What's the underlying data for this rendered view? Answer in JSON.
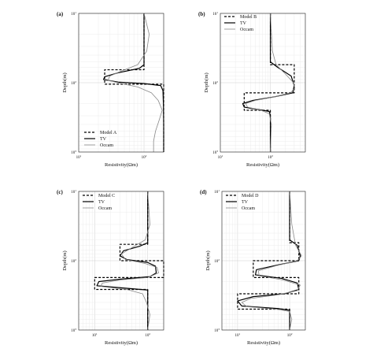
{
  "figure": {
    "panels": [
      {
        "letter": "(a)",
        "xlabel": "Resistivity(Ωm)",
        "ylabel": "Depth(m)"
      },
      {
        "letter": "(b)",
        "xlabel": "Resistivity(Ωm)",
        "ylabel": "Depth(m)"
      },
      {
        "letter": "(c)",
        "xlabel": "Resistivity(Ωm)",
        "ylabel": "Depth(m)"
      },
      {
        "letter": "(d)",
        "xlabel": "Resistivity(Ωm)",
        "ylabel": "Depth(m)"
      }
    ]
  },
  "chart_data": [
    {
      "type": "line",
      "panel": "(a)",
      "xlabel": "Resistivity(Ωm)",
      "ylabel": "Depth(m)",
      "xscale": "log",
      "yscale": "log",
      "y_inverted": true,
      "xlim": [
        10,
        200
      ],
      "ylim": [
        10,
        1000
      ],
      "xticks": [
        {
          "label": "10",
          "sup": "1"
        },
        {
          "label": "10",
          "sup": "2"
        }
      ],
      "yticks": [
        {
          "label": "10",
          "sup": "1"
        },
        {
          "label": "10",
          "sup": "2"
        },
        {
          "label": "10",
          "sup": "3"
        }
      ],
      "grid": true,
      "legend_position": "bottom-left",
      "series": [
        {
          "name": "Model A",
          "style": "dashed",
          "color": "#000000",
          "points": [
            [
              100,
              10
            ],
            [
              100,
              65
            ],
            [
              25,
              65
            ],
            [
              25,
              105
            ],
            [
              200,
              105
            ],
            [
              200,
              1000
            ]
          ]
        },
        {
          "name": "TV",
          "style": "solid",
          "color": "#000000",
          "points": [
            [
              100,
              10
            ],
            [
              100,
              55
            ],
            [
              85,
              62
            ],
            [
              40,
              72
            ],
            [
              25,
              82
            ],
            [
              24,
              90
            ],
            [
              40,
              98
            ],
            [
              100,
              103
            ],
            [
              180,
              110
            ],
            [
              195,
              130
            ],
            [
              198,
              200
            ],
            [
              200,
              400
            ],
            [
              200,
              1000
            ]
          ]
        },
        {
          "name": "Occam",
          "style": "solid",
          "color": "#888888",
          "points": [
            [
              100,
              10
            ],
            [
              120,
              20
            ],
            [
              110,
              35
            ],
            [
              80,
              55
            ],
            [
              45,
              68
            ],
            [
              30,
              80
            ],
            [
              28,
              92
            ],
            [
              45,
              103
            ],
            [
              80,
              115
            ],
            [
              130,
              140
            ],
            [
              165,
              180
            ],
            [
              190,
              250
            ],
            [
              170,
              350
            ],
            [
              150,
              500
            ],
            [
              140,
              700
            ],
            [
              140,
              1000
            ]
          ]
        }
      ]
    },
    {
      "type": "line",
      "panel": "(b)",
      "xlabel": "Resistivity(Ωm)",
      "ylabel": "Depth(m)",
      "xscale": "log",
      "yscale": "log",
      "y_inverted": true,
      "xlim": [
        10,
        500
      ],
      "ylim": [
        10,
        1000
      ],
      "xticks": [
        {
          "label": "10",
          "sup": "1"
        },
        {
          "label": "10",
          "sup": "2"
        }
      ],
      "yticks": [
        {
          "label": "10",
          "sup": "1"
        },
        {
          "label": "10",
          "sup": "2"
        },
        {
          "label": "10",
          "sup": "3"
        }
      ],
      "grid": true,
      "legend_position": "top-left",
      "series": [
        {
          "name": "Model B",
          "style": "dashed",
          "color": "#000000",
          "points": [
            [
              100,
              10
            ],
            [
              100,
              55
            ],
            [
              300,
              55
            ],
            [
              300,
              140
            ],
            [
              30,
              140
            ],
            [
              30,
              250
            ],
            [
              100,
              250
            ],
            [
              100,
              1000
            ]
          ]
        },
        {
          "name": "TV",
          "style": "solid",
          "color": "#000000",
          "points": [
            [
              100,
              10
            ],
            [
              100,
              50
            ],
            [
              140,
              60
            ],
            [
              260,
              80
            ],
            [
              300,
              110
            ],
            [
              280,
              140
            ],
            [
              120,
              160
            ],
            [
              45,
              180
            ],
            [
              28,
              200
            ],
            [
              30,
              225
            ],
            [
              60,
              245
            ],
            [
              95,
              260
            ],
            [
              100,
              300
            ],
            [
              100,
              1000
            ]
          ]
        },
        {
          "name": "Occam",
          "style": "solid",
          "color": "#888888",
          "points": [
            [
              100,
              10
            ],
            [
              110,
              35
            ],
            [
              130,
              55
            ],
            [
              200,
              75
            ],
            [
              290,
              100
            ],
            [
              310,
              120
            ],
            [
              250,
              140
            ],
            [
              120,
              160
            ],
            [
              50,
              180
            ],
            [
              32,
              200
            ],
            [
              35,
              225
            ],
            [
              65,
              250
            ],
            [
              95,
              280
            ],
            [
              105,
              400
            ],
            [
              100,
              1000
            ]
          ]
        }
      ]
    },
    {
      "type": "line",
      "panel": "(c)",
      "xlabel": "Resistivity(Ωm)",
      "ylabel": "Depth(m)",
      "xscale": "log",
      "yscale": "log",
      "y_inverted": true,
      "xlim": [
        5,
        200
      ],
      "ylim": [
        10,
        1000
      ],
      "xticks": [
        {
          "label": "10",
          "sup": "1"
        },
        {
          "label": "10",
          "sup": "2"
        }
      ],
      "yticks": [
        {
          "label": "10",
          "sup": "1"
        },
        {
          "label": "10",
          "sup": "2"
        },
        {
          "label": "10",
          "sup": "3"
        }
      ],
      "grid": true,
      "legend_position": "top-left",
      "series": [
        {
          "name": "Model C",
          "style": "dashed",
          "color": "#000000",
          "points": [
            [
              100,
              10
            ],
            [
              100,
              58
            ],
            [
              30,
              58
            ],
            [
              30,
              100
            ],
            [
              200,
              100
            ],
            [
              200,
              175
            ],
            [
              10,
              175
            ],
            [
              10,
              260
            ],
            [
              100,
              260
            ],
            [
              100,
              1000
            ]
          ]
        },
        {
          "name": "TV",
          "style": "solid",
          "color": "#000000",
          "points": [
            [
              100,
              10
            ],
            [
              100,
              55
            ],
            [
              70,
              62
            ],
            [
              35,
              72
            ],
            [
              30,
              85
            ],
            [
              40,
              96
            ],
            [
              100,
              106
            ],
            [
              140,
              120
            ],
            [
              145,
              150
            ],
            [
              110,
              170
            ],
            [
              30,
              185
            ],
            [
              12,
              200
            ],
            [
              11,
              230
            ],
            [
              40,
              250
            ],
            [
              100,
              265
            ],
            [
              100,
              1000
            ]
          ]
        },
        {
          "name": "Occam",
          "style": "solid",
          "color": "#888888",
          "points": [
            [
              100,
              10
            ],
            [
              110,
              30
            ],
            [
              90,
              50
            ],
            [
              50,
              65
            ],
            [
              32,
              80
            ],
            [
              38,
              96
            ],
            [
              90,
              110
            ],
            [
              150,
              125
            ],
            [
              160,
              150
            ],
            [
              100,
              175
            ],
            [
              30,
              190
            ],
            [
              14,
              210
            ],
            [
              13,
              235
            ],
            [
              40,
              260
            ],
            [
              80,
              300
            ],
            [
              95,
              400
            ],
            [
              110,
              600
            ],
            [
              100,
              1000
            ]
          ]
        }
      ]
    },
    {
      "type": "line",
      "panel": "(d)",
      "xlabel": "Resistivity(Ωm)",
      "ylabel": "Depth(m)",
      "xscale": "log",
      "yscale": "log",
      "y_inverted": true,
      "xlim": [
        5,
        200
      ],
      "ylim": [
        10,
        1000
      ],
      "xticks": [
        {
          "label": "10",
          "sup": "1"
        },
        {
          "label": "10",
          "sup": "2"
        }
      ],
      "yticks": [
        {
          "label": "10",
          "sup": "1"
        },
        {
          "label": "10",
          "sup": "2"
        },
        {
          "label": "10",
          "sup": "3"
        }
      ],
      "grid": true,
      "legend_position": "top-left",
      "series": [
        {
          "name": "Model D",
          "style": "dashed",
          "color": "#000000",
          "points": [
            [
              100,
              10
            ],
            [
              100,
              55
            ],
            [
              150,
              55
            ],
            [
              150,
              100
            ],
            [
              20,
              100
            ],
            [
              20,
              175
            ],
            [
              150,
              175
            ],
            [
              150,
              300
            ],
            [
              10,
              300
            ],
            [
              10,
              500
            ],
            [
              100,
              500
            ],
            [
              100,
              1000
            ]
          ]
        },
        {
          "name": "TV",
          "style": "solid",
          "color": "#000000",
          "points": [
            [
              100,
              10
            ],
            [
              100,
              50
            ],
            [
              140,
              60
            ],
            [
              160,
              85
            ],
            [
              150,
              100
            ],
            [
              60,
              115
            ],
            [
              23,
              135
            ],
            [
              22,
              160
            ],
            [
              70,
              180
            ],
            [
              140,
              210
            ],
            [
              150,
              260
            ],
            [
              80,
              300
            ],
            [
              20,
              330
            ],
            [
              10,
              380
            ],
            [
              12,
              450
            ],
            [
              60,
              490
            ],
            [
              100,
              520
            ],
            [
              100,
              1000
            ]
          ]
        },
        {
          "name": "Occam",
          "style": "solid",
          "color": "#888888",
          "points": [
            [
              100,
              10
            ],
            [
              110,
              30
            ],
            [
              130,
              60
            ],
            [
              170,
              85
            ],
            [
              140,
              100
            ],
            [
              55,
              118
            ],
            [
              25,
              140
            ],
            [
              26,
              165
            ],
            [
              75,
              190
            ],
            [
              160,
              225
            ],
            [
              140,
              270
            ],
            [
              60,
              310
            ],
            [
              18,
              350
            ],
            [
              12,
              400
            ],
            [
              15,
              460
            ],
            [
              55,
              500
            ],
            [
              100,
              540
            ],
            [
              110,
              700
            ],
            [
              100,
              1000
            ]
          ]
        }
      ]
    }
  ]
}
